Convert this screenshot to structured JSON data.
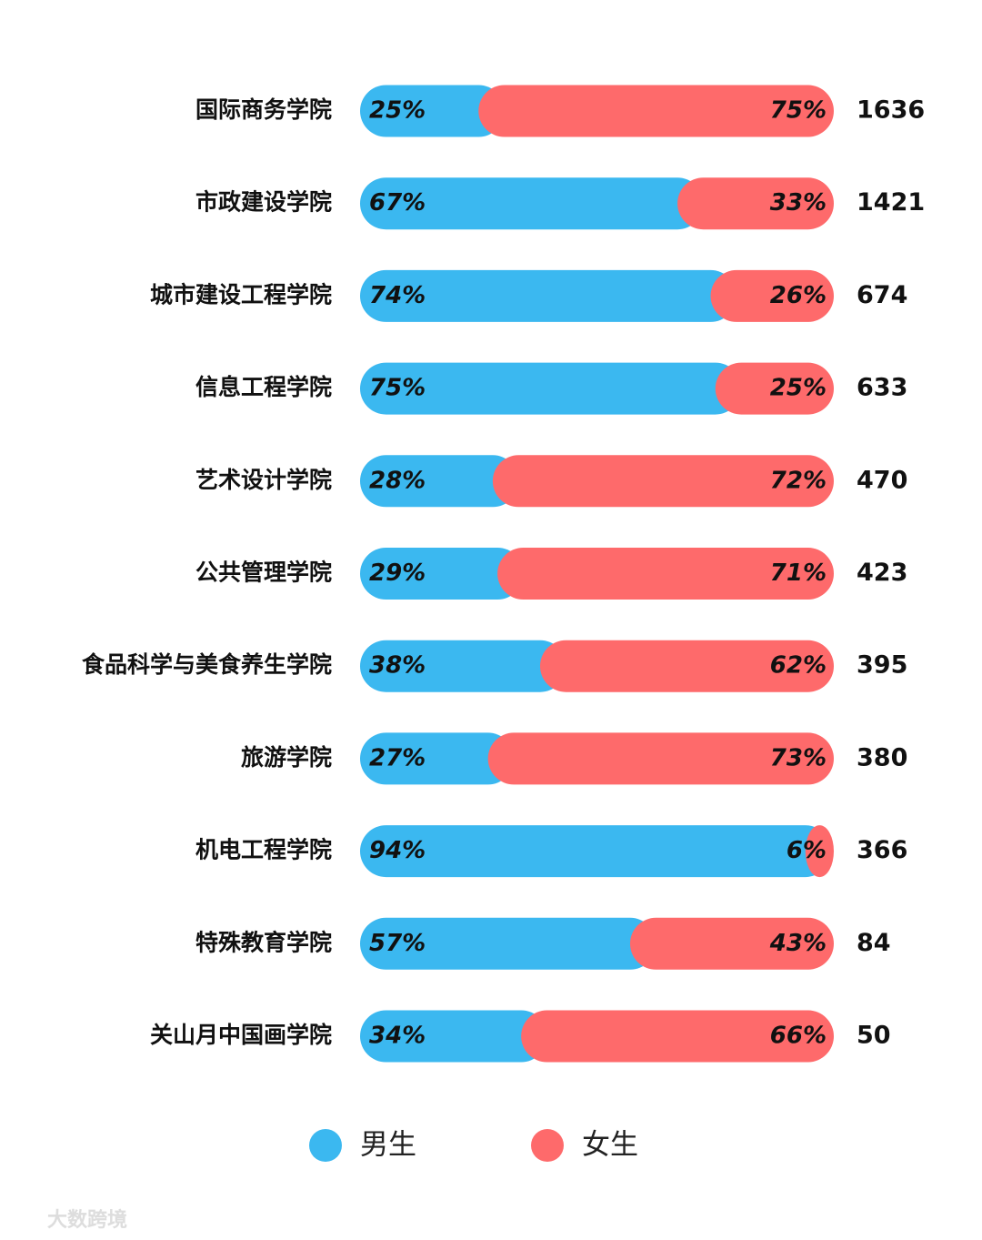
{
  "chart_data": {
    "type": "stacked_bar_100",
    "categories": [
      "国际商务学院",
      "市政建设学院",
      "城市建设工程学院",
      "信息工程学院",
      "艺术设计学院",
      "公共管理学院",
      "食品科学与美食养生学院",
      "旅游学院",
      "机电工程学院",
      "特殊教育学院",
      "关山月中国画学院"
    ],
    "series": [
      {
        "name": "男生",
        "color": "#3bb8f0",
        "values": [
          25,
          67,
          74,
          75,
          28,
          29,
          38,
          27,
          94,
          57,
          34
        ],
        "value_labels": [
          "25%",
          "67%",
          "74%",
          "75%",
          "28%",
          "29%",
          "38%",
          "27%",
          "94%",
          "57%",
          "34%"
        ]
      },
      {
        "name": "女生",
        "color": "#fe6a6b",
        "values": [
          75,
          33,
          26,
          25,
          72,
          71,
          62,
          73,
          6,
          43,
          66
        ],
        "value_labels": [
          "75%",
          "33%",
          "26%",
          "25%",
          "72%",
          "71%",
          "62%",
          "73%",
          "6%",
          "43%",
          "66%"
        ]
      }
    ],
    "totals": [
      1636,
      1421,
      674,
      633,
      470,
      423,
      395,
      380,
      366,
      84,
      50
    ],
    "xlim": [
      0,
      100
    ]
  },
  "watermark": "大数跨境"
}
